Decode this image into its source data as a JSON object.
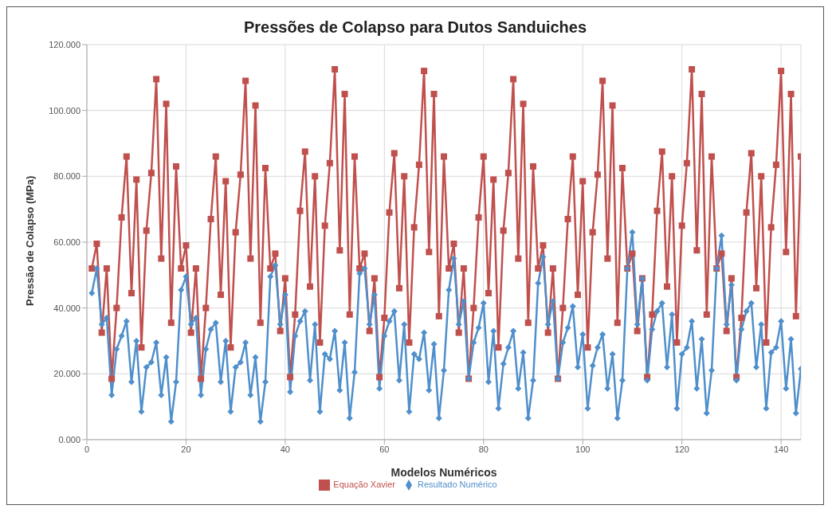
{
  "chart_data": {
    "type": "line",
    "title": "Pressões de Colapso para Dutos Sanduiches",
    "xlabel": "Modelos Numéricos",
    "ylabel": "Pressão de Colapso (MPa)",
    "x": [
      1,
      2,
      3,
      4,
      5,
      6,
      7,
      8,
      9,
      10,
      11,
      12,
      13,
      14,
      15,
      16,
      17,
      18,
      19,
      20,
      21,
      22,
      23,
      24,
      25,
      26,
      27,
      28,
      29,
      30,
      31,
      32,
      33,
      34,
      35,
      36,
      37,
      38,
      39,
      40,
      41,
      42,
      43,
      44,
      45,
      46,
      47,
      48,
      49,
      50,
      51,
      52,
      53,
      54,
      55,
      56,
      57,
      58,
      59,
      60,
      61,
      62,
      63,
      64,
      65,
      66,
      67,
      68,
      69,
      70,
      71,
      72,
      73,
      74,
      75,
      76,
      77,
      78,
      79,
      80,
      81,
      82,
      83,
      84,
      85,
      86,
      87,
      88,
      89,
      90,
      91,
      92,
      93,
      94,
      95,
      96,
      97,
      98,
      99,
      100,
      101,
      102,
      103,
      104,
      105,
      106,
      107,
      108,
      109,
      110,
      111,
      112,
      113,
      114,
      115,
      116,
      117,
      118,
      119,
      120,
      121,
      122,
      123,
      124,
      125,
      126,
      127,
      128,
      129,
      130,
      131,
      132,
      133,
      134,
      135,
      136,
      137,
      138,
      139,
      140,
      141,
      142,
      143,
      144
    ],
    "series": [
      {
        "name": "Resultado Numérico",
        "color": "#4f8fcb",
        "marker": "diamond",
        "values": [
          44.5,
          52,
          35,
          37,
          13.5,
          27.5,
          31.5,
          36,
          17.5,
          30,
          8.5,
          22,
          23.5,
          29.5,
          13.5,
          25,
          5.5,
          17.5,
          45.5,
          49.5,
          35,
          37,
          13.5,
          27.5,
          33.5,
          35.5,
          17.5,
          30,
          8.5,
          22,
          23.5,
          29.5,
          13.5,
          25,
          5.5,
          17.5,
          49.5,
          53,
          35,
          44,
          14.5,
          31.5,
          36,
          39,
          18,
          35,
          8.5,
          26,
          24.5,
          33,
          15,
          29.5,
          6.5,
          20.5,
          50.5,
          52,
          35,
          44,
          15.5,
          31.5,
          36,
          39,
          18,
          35,
          8.5,
          26,
          24.5,
          32.5,
          15,
          29,
          6.5,
          21,
          45.5,
          55,
          35,
          42,
          18.5,
          29.5,
          34,
          41.5,
          17.5,
          33,
          9.5,
          23,
          28,
          33,
          15.5,
          26.5,
          6.5,
          18,
          47.5,
          55.5,
          35,
          42,
          18.5,
          29.5,
          34,
          40.5,
          22,
          32,
          9.5,
          22.5,
          28,
          32,
          15.5,
          26,
          6.5,
          18,
          52,
          63,
          35,
          49,
          18,
          33.5,
          39,
          41.5,
          22,
          38,
          9.5,
          26,
          28,
          36,
          15.5,
          30.5,
          8,
          21,
          52,
          62,
          35,
          47,
          18,
          33.5,
          39,
          41.5,
          22,
          35,
          9.5,
          26.5,
          28,
          36,
          15.5,
          30.5,
          8,
          21.5
        ]
      },
      {
        "name": "Equação Xavier",
        "color": "#c0504d",
        "marker": "square",
        "values": [
          52,
          59.5,
          32.5,
          52,
          18.5,
          40,
          67.5,
          86,
          44.5,
          79,
          28,
          63.5,
          81,
          109.5,
          55,
          102,
          35.5,
          83,
          52,
          59,
          32.5,
          52,
          18.5,
          40,
          67,
          86,
          44,
          78.5,
          28,
          63,
          80.5,
          109,
          55,
          101.5,
          35.5,
          82.5,
          52,
          56.5,
          33,
          49,
          19,
          38,
          69.5,
          87.5,
          46.5,
          80,
          29.5,
          65,
          84,
          112.5,
          57.5,
          105,
          38,
          86,
          52,
          56.5,
          33,
          49,
          19,
          37,
          69,
          87,
          46,
          80,
          29.5,
          64.5,
          83.5,
          112,
          57,
          105,
          37.5,
          86,
          52,
          59.5,
          32.5,
          52,
          18.5,
          40,
          67.5,
          86,
          44.5,
          79,
          28,
          63.5,
          81,
          109.5,
          55,
          102,
          35.5,
          83,
          52,
          59,
          32.5,
          52,
          18.5,
          40,
          67,
          86,
          44,
          78.5,
          28,
          63,
          80.5,
          109,
          55,
          101.5,
          35.5,
          82.5,
          52,
          56.5,
          33,
          49,
          19,
          38,
          69.5,
          87.5,
          46.5,
          80,
          29.5,
          65,
          84,
          112.5,
          57.5,
          105,
          38,
          86,
          52,
          56.5,
          33,
          49,
          19,
          37,
          69,
          87,
          46,
          80,
          29.5,
          64.5,
          83.5,
          112,
          57,
          105,
          37.5,
          86
        ]
      }
    ],
    "xlim": [
      0,
      144
    ],
    "xticks": [
      0,
      20,
      40,
      60,
      80,
      100,
      120,
      140
    ],
    "ylim": [
      0,
      120
    ],
    "yticks": [
      {
        "value": 0,
        "label": "0.000"
      },
      {
        "value": 20,
        "label": "20.000"
      },
      {
        "value": 40,
        "label": "40.000"
      },
      {
        "value": 60,
        "label": "60.000"
      },
      {
        "value": 80,
        "label": "80.000"
      },
      {
        "value": 100,
        "label": "100.000"
      },
      {
        "value": 120,
        "label": "120.000"
      }
    ],
    "grid": true,
    "legend": "bottom",
    "line_style": "solid"
  }
}
